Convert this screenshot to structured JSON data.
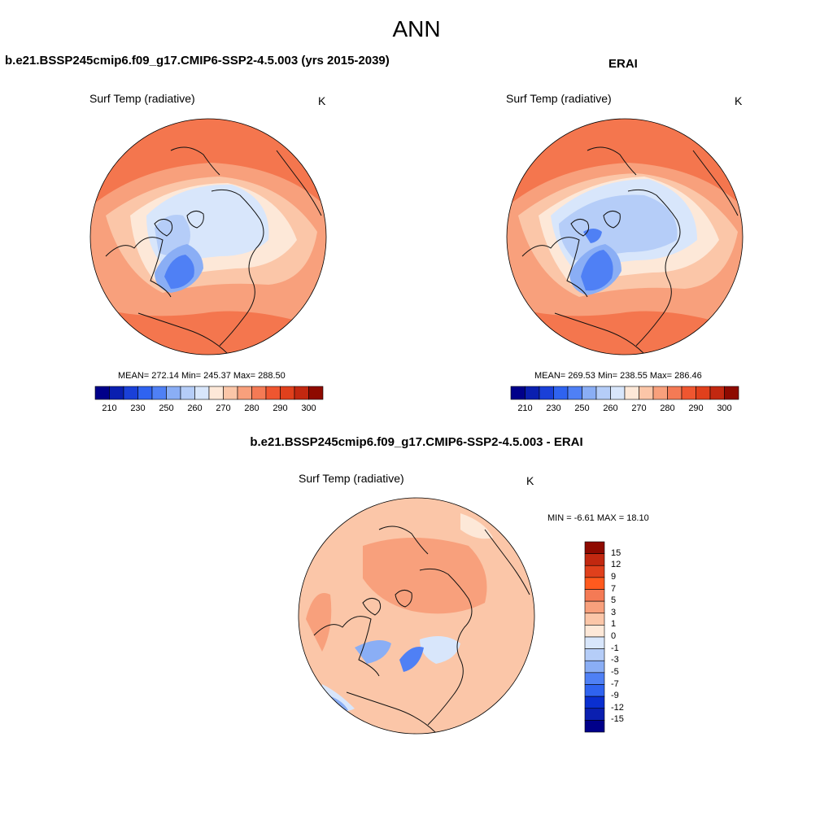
{
  "page_title": "ANN",
  "panels": {
    "model": {
      "title": "b.e21.BSSP245cmip6.f09_g17.CMIP6-SSP2-4.5.003 (yrs 2015-2039)",
      "variable": "Surf Temp (radiative)",
      "units": "K",
      "stats": "MEAN= 272.14  Min= 245.37  Max= 288.50"
    },
    "obs": {
      "title": "ERAI",
      "variable": "Surf Temp (radiative)",
      "units": "K",
      "stats": "MEAN= 269.53  Min= 238.55  Max= 286.46"
    },
    "diff": {
      "title": "b.e21.BSSP245cmip6.f09_g17.CMIP6-SSP2-4.5.003 - ERAI",
      "variable": "Surf Temp (radiative)",
      "units": "K",
      "stats": "MIN =  -6.61 MAX =  18.10"
    }
  },
  "colorbars": {
    "absolute": {
      "ticks": [
        "210",
        "230",
        "250",
        "260",
        "270",
        "280",
        "290",
        "300"
      ],
      "colors": [
        "#00008a",
        "#0a1fb0",
        "#1a40d8",
        "#2f63f0",
        "#4f80f5",
        "#8aaef5",
        "#b5cdf8",
        "#d8e6fb",
        "#fde8d8",
        "#fbc6a8",
        "#f8a07c",
        "#f47a55",
        "#ef5630",
        "#e0401c",
        "#c22810",
        "#8e0a00"
      ]
    },
    "difference": {
      "ticks": [
        "15",
        "12",
        "9",
        "7",
        "5",
        "3",
        "1",
        "0",
        "-1",
        "-3",
        "-5",
        "-7",
        "-9",
        "-12",
        "-15"
      ],
      "colors": [
        "#8e0a00",
        "#c22810",
        "#e0401c",
        "#ff5a1e",
        "#f47a55",
        "#f8a07c",
        "#fbc6a8",
        "#fde8d8",
        "#d8e6fb",
        "#b5cdf8",
        "#8aaef5",
        "#4f80f5",
        "#2f63f0",
        "#0a2fd0",
        "#0a1fb0",
        "#00008a"
      ]
    }
  },
  "map_colors": {
    "warm_outer": "#f4764e",
    "warm_mid": "#f8a07c",
    "warm_light": "#fbc6a8",
    "pale": "#fde8d8",
    "cold_light": "#d8e6fb",
    "cold_mid": "#b5cdf8",
    "cold": "#8aaef5",
    "cold_deep": "#4f80f5",
    "coast": "#111111"
  }
}
